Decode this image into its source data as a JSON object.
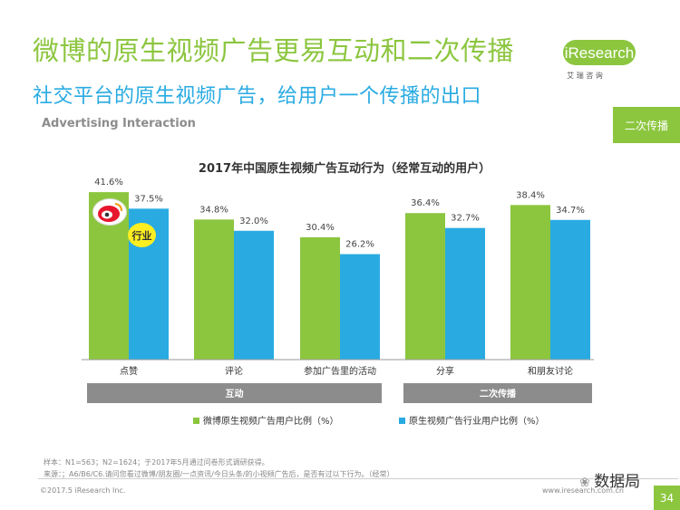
{
  "header": {
    "title": "微博的原生视频广告更易互动和二次传播",
    "subtitle": "社交平台的原生视频广告，给用户一个传播的出口",
    "section": "Advertising Interaction",
    "brand": "iResearch",
    "brand_cn": "艾 瑞 咨 询",
    "tag": "二次传播"
  },
  "badges": {
    "industry": "行业"
  },
  "chart_data": {
    "type": "bar",
    "title": "2017年中国原生视频广告互动行为（经常互动的用户）",
    "categories": [
      "点赞",
      "评论",
      "参加广告里的活动",
      "分享",
      "和朋友讨论"
    ],
    "series": [
      {
        "name": "微博原生视频广告用户比例（%）",
        "values": [
          41.6,
          34.8,
          30.4,
          36.4,
          38.4
        ],
        "labels": [
          "41.6%",
          "34.8%",
          "30.4%",
          "36.4%",
          "38.4%"
        ]
      },
      {
        "name": "原生视频广告行业用户比例（%）",
        "values": [
          37.5,
          32.0,
          26.2,
          32.7,
          34.7
        ],
        "labels": [
          "37.5%",
          "32.0%",
          "26.2%",
          "32.7%",
          "34.7%"
        ]
      }
    ],
    "groups": [
      {
        "label": "互动",
        "from": 0,
        "to": 2
      },
      {
        "label": "二次传播",
        "from": 3,
        "to": 4
      }
    ],
    "ylim": [
      0,
      45
    ],
    "grid": false,
    "legend": "bottom",
    "colors": [
      "#8cc63f",
      "#29abe2"
    ]
  },
  "footer": {
    "sample": "样本：N1=563；N2=1624；于2017年5月通过问卷形式调研获得。",
    "source": "来源：；A6/B6/C6.请问您看过微博/朋友圈/一点资讯/今日头条/的小视频广告后，是否有过以下行为。（经常）",
    "copyright": "©2017.5 iResearch Inc.",
    "website": "www.iresearch.com.cn",
    "page": "34",
    "watermark": "数据局"
  }
}
